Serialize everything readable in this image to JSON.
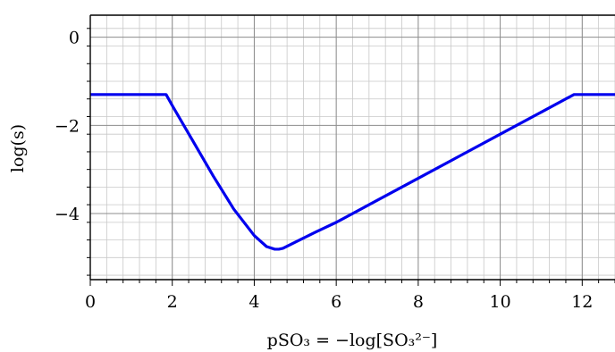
{
  "chart_data": {
    "type": "line",
    "xlabel": "pSO₃ = −log[SO₃²⁻]",
    "ylabel": "log(s)",
    "xlim": [
      0,
      12.8
    ],
    "ylim": [
      -5.5,
      0.5
    ],
    "grid": true,
    "minor_grid": true,
    "x_ticks": [
      0,
      2,
      4,
      6,
      8,
      10,
      12
    ],
    "x_tick_labels": [
      "0",
      "2",
      "4",
      "6",
      "8",
      "10",
      "12"
    ],
    "y_ticks": [
      0,
      -2,
      -4
    ],
    "y_tick_labels": [
      "0",
      "−2",
      "−4"
    ],
    "series": [
      {
        "color": "#0000ee",
        "x": [
          0,
          1.85,
          2.0,
          2.5,
          3.0,
          3.5,
          4.0,
          4.3,
          4.5,
          4.6,
          4.7,
          5.0,
          5.5,
          6.0,
          7.0,
          8.0,
          9.0,
          10.0,
          11.0,
          11.8,
          12.8
        ],
        "y": [
          -1.3,
          -1.3,
          -1.55,
          -2.35,
          -3.15,
          -3.9,
          -4.5,
          -4.75,
          -4.81,
          -4.81,
          -4.79,
          -4.65,
          -4.42,
          -4.2,
          -3.7,
          -3.2,
          -2.7,
          -2.2,
          -1.7,
          -1.3,
          -1.3
        ]
      }
    ]
  }
}
